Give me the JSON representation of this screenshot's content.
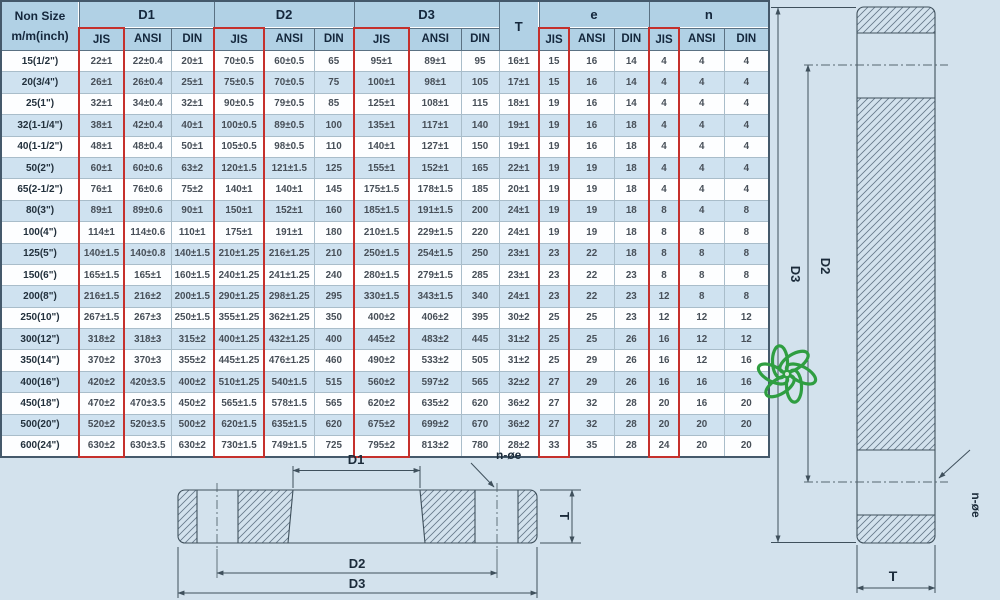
{
  "colors": {
    "page_background": "#d3e2ed",
    "header_background": "#b1d1e5",
    "row_alternate": "#cfe2f0",
    "row_plain": "#ffffff",
    "jis_highlight_box": "#c5302c",
    "drawing_line": "#3f505c",
    "logo_green": "#2f9e41"
  },
  "table": {
    "corner_title_line1": "Non Size",
    "corner_title_line2": "m/m(inch)",
    "highlighted_standard": "JIS",
    "groups": [
      {
        "key": "d1",
        "label": "D1",
        "subs": [
          "JIS",
          "ANSI",
          "DIN"
        ]
      },
      {
        "key": "d2",
        "label": "D2",
        "subs": [
          "JIS",
          "ANSI",
          "DIN"
        ]
      },
      {
        "key": "d3",
        "label": "D3",
        "subs": [
          "JIS",
          "ANSI",
          "DIN"
        ]
      },
      {
        "key": "t",
        "label": "T",
        "subs": []
      },
      {
        "key": "e",
        "label": "e",
        "subs": [
          "JIS",
          "ANSI",
          "DIN"
        ]
      },
      {
        "key": "n",
        "label": "n",
        "subs": [
          "JIS",
          "ANSI",
          "DIN"
        ]
      }
    ],
    "rows": [
      {
        "size": "15(1/2\")",
        "d1": [
          "22±1",
          "22±0.4",
          "20±1"
        ],
        "d2": [
          "70±0.5",
          "60±0.5",
          "65"
        ],
        "d3": [
          "95±1",
          "89±1",
          "95"
        ],
        "t": "16±1",
        "e": [
          "15",
          "16",
          "14"
        ],
        "n": [
          "4",
          "4",
          "4"
        ]
      },
      {
        "size": "20(3/4\")",
        "d1": [
          "26±1",
          "26±0.4",
          "25±1"
        ],
        "d2": [
          "75±0.5",
          "70±0.5",
          "75"
        ],
        "d3": [
          "100±1",
          "98±1",
          "105"
        ],
        "t": "17±1",
        "e": [
          "15",
          "16",
          "14"
        ],
        "n": [
          "4",
          "4",
          "4"
        ]
      },
      {
        "size": "25(1\")",
        "d1": [
          "32±1",
          "34±0.4",
          "32±1"
        ],
        "d2": [
          "90±0.5",
          "79±0.5",
          "85"
        ],
        "d3": [
          "125±1",
          "108±1",
          "115"
        ],
        "t": "18±1",
        "e": [
          "19",
          "16",
          "14"
        ],
        "n": [
          "4",
          "4",
          "4"
        ]
      },
      {
        "size": "32(1-1/4\")",
        "d1": [
          "38±1",
          "42±0.4",
          "40±1"
        ],
        "d2": [
          "100±0.5",
          "89±0.5",
          "100"
        ],
        "d3": [
          "135±1",
          "117±1",
          "140"
        ],
        "t": "19±1",
        "e": [
          "19",
          "16",
          "18"
        ],
        "n": [
          "4",
          "4",
          "4"
        ]
      },
      {
        "size": "40(1-1/2\")",
        "d1": [
          "48±1",
          "48±0.4",
          "50±1"
        ],
        "d2": [
          "105±0.5",
          "98±0.5",
          "110"
        ],
        "d3": [
          "140±1",
          "127±1",
          "150"
        ],
        "t": "19±1",
        "e": [
          "19",
          "16",
          "18"
        ],
        "n": [
          "4",
          "4",
          "4"
        ]
      },
      {
        "size": "50(2\")",
        "d1": [
          "60±1",
          "60±0.6",
          "63±2"
        ],
        "d2": [
          "120±1.5",
          "121±1.5",
          "125"
        ],
        "d3": [
          "155±1",
          "152±1",
          "165"
        ],
        "t": "22±1",
        "e": [
          "19",
          "19",
          "18"
        ],
        "n": [
          "4",
          "4",
          "4"
        ]
      },
      {
        "size": "65(2-1/2\")",
        "d1": [
          "76±1",
          "76±0.6",
          "75±2"
        ],
        "d2": [
          "140±1",
          "140±1",
          "145"
        ],
        "d3": [
          "175±1.5",
          "178±1.5",
          "185"
        ],
        "t": "20±1",
        "e": [
          "19",
          "19",
          "18"
        ],
        "n": [
          "4",
          "4",
          "4"
        ]
      },
      {
        "size": "80(3\")",
        "d1": [
          "89±1",
          "89±0.6",
          "90±1"
        ],
        "d2": [
          "150±1",
          "152±1",
          "160"
        ],
        "d3": [
          "185±1.5",
          "191±1.5",
          "200"
        ],
        "t": "24±1",
        "e": [
          "19",
          "19",
          "18"
        ],
        "n": [
          "8",
          "4",
          "8"
        ]
      },
      {
        "size": "100(4\")",
        "d1": [
          "114±1",
          "114±0.6",
          "110±1"
        ],
        "d2": [
          "175±1",
          "191±1",
          "180"
        ],
        "d3": [
          "210±1.5",
          "229±1.5",
          "220"
        ],
        "t": "24±1",
        "e": [
          "19",
          "19",
          "18"
        ],
        "n": [
          "8",
          "8",
          "8"
        ]
      },
      {
        "size": "125(5\")",
        "d1": [
          "140±1.5",
          "140±0.8",
          "140±1.5"
        ],
        "d2": [
          "210±1.25",
          "216±1.25",
          "210"
        ],
        "d3": [
          "250±1.5",
          "254±1.5",
          "250"
        ],
        "t": "23±1",
        "e": [
          "23",
          "22",
          "18"
        ],
        "n": [
          "8",
          "8",
          "8"
        ]
      },
      {
        "size": "150(6\")",
        "d1": [
          "165±1.5",
          "165±1",
          "160±1.5"
        ],
        "d2": [
          "240±1.25",
          "241±1.25",
          "240"
        ],
        "d3": [
          "280±1.5",
          "279±1.5",
          "285"
        ],
        "t": "23±1",
        "e": [
          "23",
          "22",
          "23"
        ],
        "n": [
          "8",
          "8",
          "8"
        ]
      },
      {
        "size": "200(8\")",
        "d1": [
          "216±1.5",
          "216±2",
          "200±1.5"
        ],
        "d2": [
          "290±1.25",
          "298±1.25",
          "295"
        ],
        "d3": [
          "330±1.5",
          "343±1.5",
          "340"
        ],
        "t": "24±1",
        "e": [
          "23",
          "22",
          "23"
        ],
        "n": [
          "12",
          "8",
          "8"
        ]
      },
      {
        "size": "250(10\")",
        "d1": [
          "267±1.5",
          "267±3",
          "250±1.5"
        ],
        "d2": [
          "355±1.25",
          "362±1.25",
          "350"
        ],
        "d3": [
          "400±2",
          "406±2",
          "395"
        ],
        "t": "30±2",
        "e": [
          "25",
          "25",
          "23"
        ],
        "n": [
          "12",
          "12",
          "12"
        ]
      },
      {
        "size": "300(12\")",
        "d1": [
          "318±2",
          "318±3",
          "315±2"
        ],
        "d2": [
          "400±1.25",
          "432±1.25",
          "400"
        ],
        "d3": [
          "445±2",
          "483±2",
          "445"
        ],
        "t": "31±2",
        "e": [
          "25",
          "25",
          "26"
        ],
        "n": [
          "16",
          "12",
          "12"
        ]
      },
      {
        "size": "350(14\")",
        "d1": [
          "370±2",
          "370±3",
          "355±2"
        ],
        "d2": [
          "445±1.25",
          "476±1.25",
          "460"
        ],
        "d3": [
          "490±2",
          "533±2",
          "505"
        ],
        "t": "31±2",
        "e": [
          "25",
          "29",
          "26"
        ],
        "n": [
          "16",
          "12",
          "16"
        ]
      },
      {
        "size": "400(16\")",
        "d1": [
          "420±2",
          "420±3.5",
          "400±2"
        ],
        "d2": [
          "510±1.25",
          "540±1.5",
          "515"
        ],
        "d3": [
          "560±2",
          "597±2",
          "565"
        ],
        "t": "32±2",
        "e": [
          "27",
          "29",
          "26"
        ],
        "n": [
          "16",
          "16",
          "16"
        ]
      },
      {
        "size": "450(18\")",
        "d1": [
          "470±2",
          "470±3.5",
          "450±2"
        ],
        "d2": [
          "565±1.5",
          "578±1.5",
          "565"
        ],
        "d3": [
          "620±2",
          "635±2",
          "620"
        ],
        "t": "36±2",
        "e": [
          "27",
          "32",
          "28"
        ],
        "n": [
          "20",
          "16",
          "20"
        ]
      },
      {
        "size": "500(20\")",
        "d1": [
          "520±2",
          "520±3.5",
          "500±2"
        ],
        "d2": [
          "620±1.5",
          "635±1.5",
          "620"
        ],
        "d3": [
          "675±2",
          "699±2",
          "670"
        ],
        "t": "36±2",
        "e": [
          "27",
          "32",
          "28"
        ],
        "n": [
          "20",
          "20",
          "20"
        ]
      },
      {
        "size": "600(24\")",
        "d1": [
          "630±2",
          "630±3.5",
          "630±2"
        ],
        "d2": [
          "730±1.5",
          "749±1.5",
          "725"
        ],
        "d3": [
          "795±2",
          "813±2",
          "780"
        ],
        "t": "28±2",
        "e": [
          "33",
          "35",
          "28"
        ],
        "n": [
          "24",
          "20",
          "20"
        ]
      }
    ]
  },
  "drawings": {
    "front_section": {
      "labels": {
        "d1": "D1",
        "n_oe": "n-øe",
        "t": "T",
        "d2": "D2",
        "d3": "D3"
      }
    },
    "side_section": {
      "labels": {
        "d3": "D3",
        "d2": "D2",
        "n_oe": "n-øe",
        "t": "T"
      }
    }
  }
}
